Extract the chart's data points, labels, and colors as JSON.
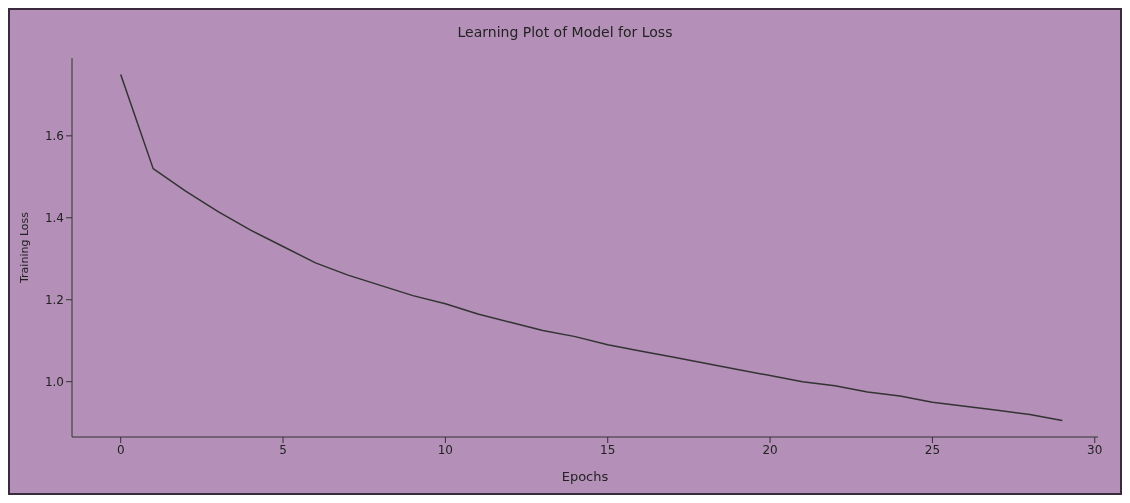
{
  "chart_data": {
    "type": "line",
    "title": "Learning Plot of Model for Loss",
    "xlabel": "Epochs",
    "ylabel": "Training Loss",
    "x": [
      0,
      1,
      2,
      3,
      4,
      5,
      6,
      7,
      8,
      9,
      10,
      11,
      12,
      13,
      14,
      15,
      16,
      17,
      18,
      19,
      20,
      21,
      22,
      23,
      24,
      25,
      26,
      27,
      28,
      29
    ],
    "series": [
      {
        "color": "#333333",
        "values": [
          1.75,
          1.52,
          1.465,
          1.415,
          1.37,
          1.33,
          1.29,
          1.26,
          1.235,
          1.21,
          1.19,
          1.165,
          1.145,
          1.125,
          1.11,
          1.09,
          1.075,
          1.06,
          1.045,
          1.03,
          1.015,
          1.0,
          0.99,
          0.975,
          0.965,
          0.95,
          0.94,
          0.93,
          0.92,
          0.905
        ]
      }
    ],
    "xlim": [
      -1.5,
      30.1
    ],
    "xticks": [
      0,
      5,
      10,
      15,
      20,
      25,
      30
    ],
    "ylim": [
      0.865,
      1.79
    ],
    "yticks": [
      {
        "value": 1.0,
        "label": "1.0"
      },
      {
        "value": 1.2,
        "label": "1.2"
      },
      {
        "value": 1.4,
        "label": "1.4"
      },
      {
        "value": 1.6,
        "label": "1.6"
      }
    ],
    "grid": false,
    "legend": false,
    "marker": "none",
    "line_style": "solid"
  }
}
